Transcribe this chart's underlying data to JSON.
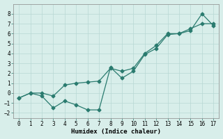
{
  "line1_x": [
    0,
    1,
    2,
    3,
    4,
    5,
    6,
    7,
    8,
    9,
    10,
    11,
    12,
    13,
    14,
    15,
    16,
    17
  ],
  "line1_y": [
    -0.5,
    0.0,
    0.0,
    -0.3,
    0.8,
    1.0,
    1.1,
    1.2,
    2.5,
    2.2,
    2.5,
    4.0,
    4.8,
    6.0,
    6.0,
    6.5,
    7.0,
    7.0
  ],
  "line2_x": [
    0,
    1,
    2,
    3,
    4,
    5,
    6,
    7,
    8,
    9,
    10,
    11,
    12,
    13,
    14,
    15,
    16,
    17
  ],
  "line2_y": [
    -0.5,
    0.0,
    -0.3,
    -1.5,
    -0.8,
    -1.2,
    -1.7,
    -1.7,
    2.6,
    1.5,
    2.2,
    3.9,
    4.5,
    5.9,
    6.0,
    6.3,
    8.0,
    6.8
  ],
  "color": "#2a7b6f",
  "bg_color": "#d8eeea",
  "grid_color": "#b8d8d4",
  "xlabel": "Humidex (Indice chaleur)",
  "xlim": [
    -0.5,
    17.5
  ],
  "ylim": [
    -2.5,
    9.0
  ],
  "xticks": [
    0,
    1,
    2,
    3,
    4,
    5,
    6,
    7,
    8,
    9,
    10,
    11,
    12,
    13,
    14,
    15,
    16,
    17
  ],
  "yticks": [
    -2,
    -1,
    0,
    1,
    2,
    3,
    4,
    5,
    6,
    7,
    8
  ],
  "marker": "D",
  "markersize": 2.5,
  "linewidth": 0.9,
  "tick_fontsize": 5.5,
  "xlabel_fontsize": 6.5
}
